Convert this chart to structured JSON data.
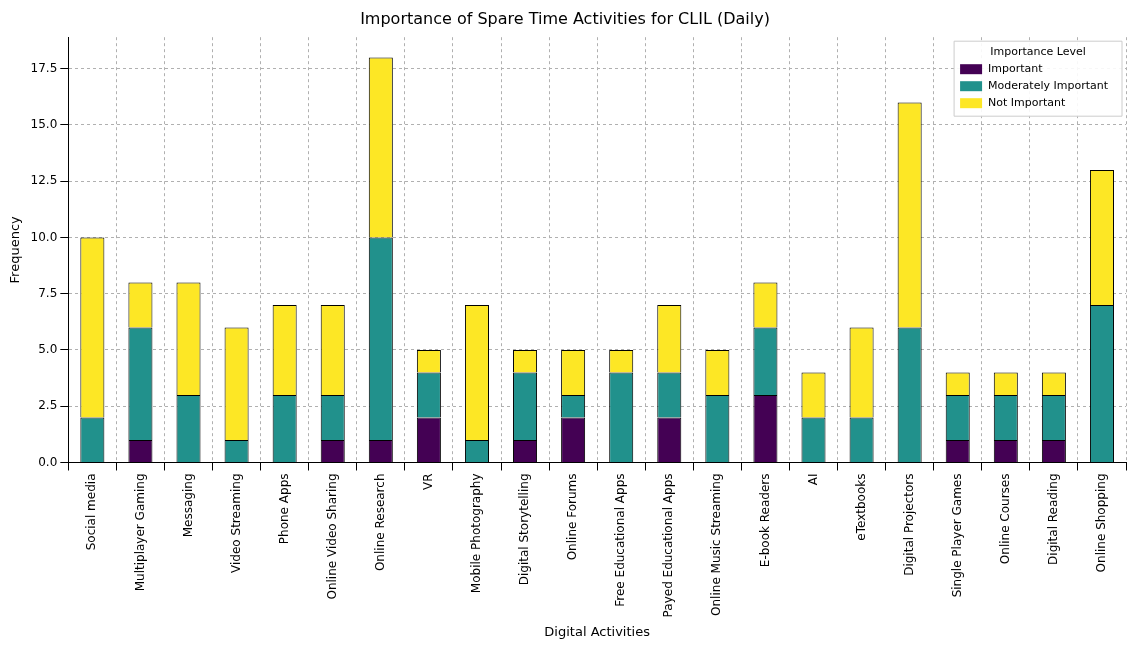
{
  "chart_data": {
    "type": "bar",
    "title": "Importance of Spare Time Activities for CLIL (Daily)",
    "xlabel": "Digital Activities",
    "ylabel": "Frequency",
    "legend_title": "Importance Level",
    "categories": [
      "Social media",
      "Multiplayer Gaming",
      "Messaging",
      "Video Streaming",
      "Phone Apps",
      "Online Video Sharing",
      "Online Research",
      "VR",
      "Mobile Photography",
      "Digital Storytelling",
      "Online Forums",
      "Free Educational Apps",
      "Payed Educational Apps",
      "Online Music Streaming",
      "E-book Readers",
      "AI",
      "eTextbooks",
      "Digital Projectors",
      "Single Player Games",
      "Online Courses",
      "Digital Reading",
      "Online Shopping"
    ],
    "series": [
      {
        "name": "Important",
        "color": "#440154",
        "values": [
          0,
          1,
          0,
          0,
          0,
          1,
          1,
          2,
          0,
          1,
          2,
          0,
          2,
          0,
          3,
          0,
          0,
          0,
          1,
          1,
          1,
          0
        ]
      },
      {
        "name": "Moderately Important",
        "color": "#21918c",
        "values": [
          2,
          5,
          3,
          1,
          3,
          2,
          9,
          2,
          1,
          3,
          1,
          4,
          2,
          3,
          3,
          2,
          2,
          6,
          2,
          2,
          2,
          7
        ]
      },
      {
        "name": "Not Important",
        "color": "#fde725",
        "values": [
          8,
          2,
          5,
          5,
          4,
          4,
          8,
          1,
          6,
          1,
          2,
          1,
          3,
          2,
          2,
          2,
          4,
          10,
          1,
          1,
          1,
          6
        ]
      }
    ],
    "stacked": true,
    "ylim": [
      0,
      18.9
    ],
    "yticks": [
      {
        "value": 0,
        "label": "0.0"
      },
      {
        "value": 2.5,
        "label": "2.5"
      },
      {
        "value": 5,
        "label": "5.0"
      },
      {
        "value": 7.5,
        "label": "7.5"
      },
      {
        "value": 10,
        "label": "10.0"
      },
      {
        "value": 12.5,
        "label": "12.5"
      },
      {
        "value": 15,
        "label": "15.0"
      },
      {
        "value": 17.5,
        "label": "17.5"
      }
    ],
    "grid": true,
    "legend": "top right"
  }
}
